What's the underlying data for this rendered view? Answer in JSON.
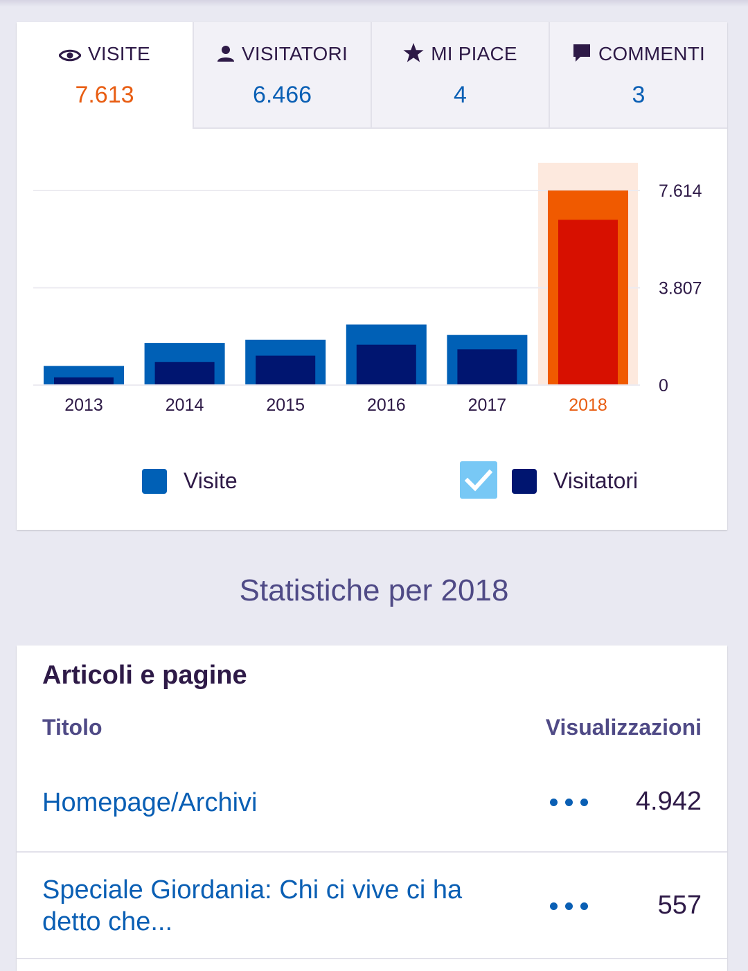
{
  "tabs": [
    {
      "label": "VISITE",
      "value": "7.613",
      "icon": "eye-icon",
      "selected": true
    },
    {
      "label": "VISITATORI",
      "value": "6.466",
      "icon": "person-icon",
      "selected": false
    },
    {
      "label": "MI PIACE",
      "value": "4",
      "icon": "star-icon",
      "selected": false
    },
    {
      "label": "COMMENTI",
      "value": "3",
      "icon": "comment-icon",
      "selected": false
    }
  ],
  "chart_data": {
    "type": "bar",
    "categories": [
      "2013",
      "2014",
      "2015",
      "2016",
      "2017",
      "2018"
    ],
    "series": [
      {
        "name": "Visite",
        "values": [
          750,
          1650,
          1770,
          2370,
          1960,
          7613
        ]
      },
      {
        "name": "Visitatori",
        "values": [
          300,
          900,
          1150,
          1580,
          1400,
          6466
        ]
      }
    ],
    "ylim": [
      0,
      7614
    ],
    "y_ticks": [
      "7.614",
      "3.807",
      "0"
    ],
    "y_tick_values": [
      7614,
      3807,
      0
    ],
    "highlighted_category": "2018",
    "colors": {
      "visite": "#0060b6",
      "visitatori": "#001570",
      "visite_highlight": "#f05a00",
      "visitatori_highlight": "#d71000",
      "highlight_band": "#fde9de",
      "highlight_label": "#e85d12",
      "grid": "#ecebf1"
    },
    "grid": true,
    "y_axis_position": "right",
    "legend_position": "bottom"
  },
  "legend": {
    "visite_label": "Visite",
    "visitatori_label": "Visitatori",
    "visitatori_checked": true
  },
  "section_title": "Statistiche per 2018",
  "posts": {
    "title": "Articoli e pagine",
    "col_title": "Titolo",
    "col_views": "Visualizzazioni",
    "rows": [
      {
        "title": "Homepage/Archivi",
        "views": "4.942"
      },
      {
        "title": "Speciale Giordania: Chi ci vive ci ha detto che...",
        "views": "557"
      }
    ]
  }
}
